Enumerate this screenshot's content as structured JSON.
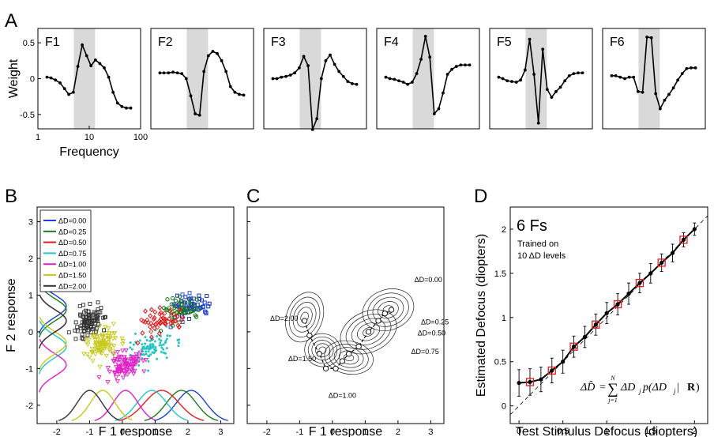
{
  "panel_letters": [
    "A",
    "B",
    "C",
    "D"
  ],
  "colors": {
    "axis": "#000000",
    "shade": "#d9d9d9",
    "dd_0_00": "#1f3fd0",
    "dd_0_25": "#1c7a1c",
    "dd_0_50": "#e01f1f",
    "dd_0_75": "#27c4c4",
    "dd_1_00": "#e020c8",
    "dd_1_50": "#c8c81e",
    "dd_2_00": "#333333",
    "d_marker_edge": "#e02020"
  },
  "chart_data": [
    {
      "type": "line",
      "panel": "A",
      "ylabel": "Weight",
      "xlabel": "Frequency",
      "xscale": "log",
      "xlim": [
        1,
        100
      ],
      "ylim": [
        -0.7,
        0.7
      ],
      "yticks": [
        "0.5",
        "0",
        "-0.5"
      ],
      "xticks": [
        "1",
        "10",
        "100"
      ],
      "shade_band": [
        5,
        13
      ],
      "frequency": [
        1.5,
        1.8,
        2.2,
        2.7,
        3.3,
        4.0,
        4.9,
        6.0,
        7.3,
        8.9,
        10.8,
        13.2,
        16.1,
        19.6,
        23.9,
        29.1,
        35.5,
        43.3,
        52.8,
        64.3
      ],
      "series": [
        {
          "name": "F1",
          "values": [
            0.02,
            0.01,
            -0.02,
            -0.06,
            -0.14,
            -0.22,
            -0.19,
            0.17,
            0.47,
            0.32,
            0.18,
            0.26,
            0.21,
            0.15,
            0.02,
            -0.19,
            -0.34,
            -0.39,
            -0.41,
            -0.41
          ]
        },
        {
          "name": "F2",
          "values": [
            0.08,
            0.08,
            0.08,
            0.09,
            0.08,
            0.07,
            0.0,
            -0.24,
            -0.49,
            -0.51,
            0.1,
            0.32,
            0.38,
            0.35,
            0.25,
            0.1,
            -0.11,
            -0.19,
            -0.22,
            -0.23
          ]
        },
        {
          "name": "F3",
          "values": [
            0.0,
            0.0,
            0.02,
            0.03,
            0.05,
            0.08,
            0.15,
            0.31,
            0.18,
            -0.71,
            -0.56,
            0.0,
            0.25,
            0.33,
            0.2,
            0.1,
            0.03,
            -0.04,
            -0.07,
            -0.08
          ]
        },
        {
          "name": "F4",
          "values": [
            0.02,
            0.0,
            -0.01,
            -0.03,
            -0.05,
            -0.08,
            -0.05,
            0.07,
            0.27,
            0.59,
            0.3,
            -0.49,
            -0.42,
            -0.2,
            0.06,
            0.13,
            0.17,
            0.19,
            0.19,
            0.19
          ]
        },
        {
          "name": "F5",
          "values": [
            0.02,
            0.0,
            -0.03,
            -0.04,
            -0.05,
            -0.02,
            0.12,
            0.55,
            0.06,
            -0.62,
            0.41,
            -0.15,
            -0.26,
            -0.18,
            -0.12,
            -0.03,
            0.04,
            0.07,
            0.08,
            0.08
          ]
        },
        {
          "name": "F6",
          "values": [
            0.04,
            0.04,
            0.02,
            0.0,
            0.02,
            0.02,
            -0.18,
            -0.19,
            0.58,
            0.57,
            -0.21,
            -0.42,
            -0.3,
            -0.22,
            -0.13,
            -0.02,
            0.07,
            0.14,
            0.15,
            0.15
          ]
        }
      ]
    },
    {
      "type": "scatter",
      "panel": "B",
      "xlabel": "F 1 response",
      "ylabel": "F 2 response",
      "xlim": [
        -2.6,
        3.4
      ],
      "ylim": [
        -2.5,
        3.4
      ],
      "xticks": [
        "-2",
        "-1",
        "0",
        "1",
        "2",
        "3"
      ],
      "yticks": [
        "3",
        "2",
        "1",
        "0",
        "-1",
        "-2"
      ],
      "legend_location": "upper-left",
      "series": [
        {
          "name": "ΔD=0.00",
          "color_key": "dd_0_00",
          "center": [
            2.1,
            0.7
          ],
          "spread": [
            0.6,
            0.3
          ],
          "marker": "square"
        },
        {
          "name": "ΔD=0.25",
          "color_key": "dd_0_25",
          "center": [
            1.8,
            0.6
          ],
          "spread": [
            0.6,
            0.3
          ],
          "marker": "circle"
        },
        {
          "name": "ΔD=0.50",
          "color_key": "dd_0_50",
          "center": [
            1.2,
            0.3
          ],
          "spread": [
            0.7,
            0.3
          ],
          "marker": "diamond"
        },
        {
          "name": "ΔD=0.75",
          "color_key": "dd_0_75",
          "center": [
            0.9,
            -0.4
          ],
          "spread": [
            0.6,
            0.35
          ],
          "marker": "dot"
        },
        {
          "name": "ΔD=1.00",
          "color_key": "dd_1_00",
          "center": [
            0.1,
            -0.9
          ],
          "spread": [
            0.45,
            0.3
          ],
          "marker": "triangle-down"
        },
        {
          "name": "ΔD=1.50",
          "color_key": "dd_1_50",
          "center": [
            -0.6,
            -0.3
          ],
          "spread": [
            0.45,
            0.35
          ],
          "marker": "triangle-down"
        },
        {
          "name": "ΔD=2.00",
          "color_key": "dd_2_00",
          "center": [
            -1.0,
            0.3
          ],
          "spread": [
            0.35,
            0.35
          ],
          "marker": "square"
        }
      ]
    },
    {
      "type": "contour",
      "panel": "C",
      "xlabel": "F 1 response",
      "xlim": [
        -2.6,
        3.4
      ],
      "ylim": [
        -2.5,
        3.4
      ],
      "xticks": [
        "-2",
        "-1",
        "0",
        "1",
        "2",
        "3"
      ],
      "labels": [
        "ΔD=0.00",
        "ΔD=0.25",
        "ΔD=0.50",
        "ΔD=0.75",
        "ΔD=1.00",
        "ΔD=1.50",
        "ΔD=2.00"
      ],
      "centroids": [
        [
          -0.85,
          0.3
        ],
        [
          -0.7,
          -0.1
        ],
        [
          -0.4,
          -0.6
        ],
        [
          -0.2,
          -1.0
        ],
        [
          0.1,
          -1.0
        ],
        [
          0.3,
          -0.8
        ],
        [
          0.5,
          -0.6
        ],
        [
          0.8,
          -0.4
        ],
        [
          1.1,
          0.0
        ],
        [
          1.4,
          0.3
        ],
        [
          1.6,
          0.5
        ],
        [
          1.8,
          0.6
        ]
      ]
    },
    {
      "type": "line",
      "panel": "D",
      "xlabel": "Test Stimulus Defocus (diopters)",
      "ylabel": "Estimated Defocus (diopters)",
      "xlim": [
        -0.1,
        2.15
      ],
      "ylim": [
        -0.2,
        2.25
      ],
      "xticks": [
        "0",
        "0.5",
        "1",
        "1.5",
        "2"
      ],
      "yticks": [
        "0",
        "0.5",
        "1",
        "1.5",
        "2"
      ],
      "title": "6 Fs",
      "annotation": [
        "Trained on",
        "10 ΔD levels"
      ],
      "formula": {
        "lhs": "ΔD̂",
        "equals": "=",
        "sum_upper": "N",
        "sum_lower": "j=1",
        "sigma": "∑",
        "rhs": "ΔD",
        "rhs_sub": "j",
        "p_term": "p(ΔD",
        "p_sub": "j",
        "cond": " | ",
        "bold_r": "R",
        "close": ")"
      },
      "x": [
        0.0,
        0.125,
        0.25,
        0.375,
        0.5,
        0.625,
        0.75,
        0.875,
        1.0,
        1.125,
        1.25,
        1.375,
        1.5,
        1.625,
        1.75,
        1.875,
        2.0
      ],
      "series": [
        {
          "name": "estimate",
          "values": [
            0.26,
            0.27,
            0.3,
            0.4,
            0.5,
            0.67,
            0.78,
            0.92,
            1.05,
            1.15,
            1.27,
            1.39,
            1.5,
            1.62,
            1.73,
            1.88,
            2.0
          ],
          "error": [
            0.15,
            0.15,
            0.14,
            0.14,
            0.13,
            0.12,
            0.12,
            0.12,
            0.12,
            0.12,
            0.12,
            0.11,
            0.11,
            0.1,
            0.1,
            0.08,
            0.07
          ]
        }
      ],
      "trained_levels_x": [
        0.125,
        0.375,
        0.625,
        0.875,
        1.125,
        1.375,
        1.625,
        1.875
      ]
    }
  ]
}
